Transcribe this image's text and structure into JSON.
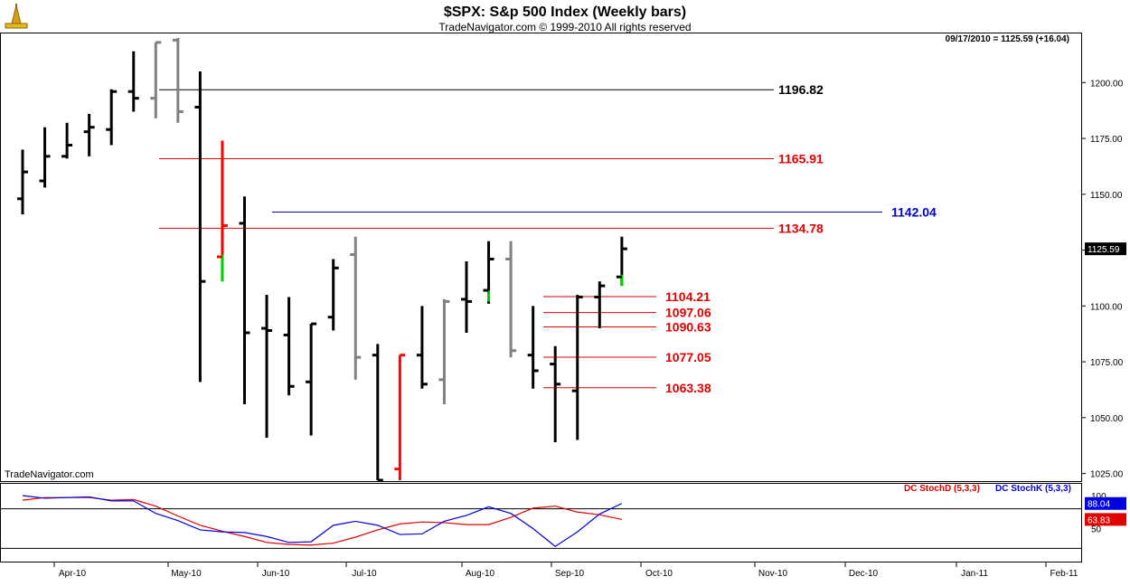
{
  "header": {
    "title": "$SPX:  S&p 500 Index  (Weekly bars)",
    "subtitle": "TradeNavigator.com © 1999-2010 All rights reserved",
    "price_info": "09/17/2010 = 1125.59 (+16.04)",
    "watermark": "TradeNavigator.com"
  },
  "colors": {
    "up": "#000000",
    "down": "#808080",
    "red": "#ff0000",
    "green": "#00d000",
    "blue": "#0000cc",
    "stochD": "#e00000",
    "stochK": "#0000e0"
  },
  "chart_data": [
    {
      "type": "ohlc",
      "title": "$SPX:  S&p 500 Index  (Weekly bars)",
      "ylim": [
        1022,
        1222
      ],
      "y_ticks": [
        "1025.00",
        "1050.00",
        "1075.00",
        "1100.00",
        "1125.00",
        "1150.00",
        "1175.00",
        "1200.00"
      ],
      "x_ticks": [
        "Apr-10",
        "May-10",
        "Jun-10",
        "Jul-10",
        "Aug-10",
        "Sep-10",
        "Oct-10",
        "Nov-10",
        "Dec-10",
        "Jan-11",
        "Feb-11"
      ],
      "current_price_label": "1125.59",
      "bars": [
        {
          "o": 1148,
          "h": 1170,
          "l": 1141,
          "c": 1160,
          "color": "up"
        },
        {
          "o": 1156,
          "h": 1180,
          "l": 1153,
          "c": 1167,
          "color": "up"
        },
        {
          "o": 1167,
          "h": 1182,
          "l": 1166,
          "c": 1172,
          "color": "up"
        },
        {
          "o": 1178,
          "h": 1186,
          "l": 1167,
          "c": 1180,
          "color": "up"
        },
        {
          "o": 1179,
          "h": 1197,
          "l": 1172,
          "c": 1196,
          "color": "up"
        },
        {
          "o": 1196,
          "h": 1214,
          "l": 1187,
          "c": 1193,
          "color": "up"
        },
        {
          "o": 1193,
          "h": 1218,
          "l": 1184,
          "c": 1218,
          "color": "down"
        },
        {
          "o": 1219,
          "h": 1220,
          "l": 1182,
          "c": 1187,
          "color": "down"
        },
        {
          "o": 1189,
          "h": 1205,
          "l": 1066,
          "c": 1111,
          "color": "up"
        },
        {
          "o": 1122,
          "h": 1174,
          "l": 1111,
          "c": 1136,
          "color": "red",
          "lowHighlight": [
            1111,
            1123
          ]
        },
        {
          "o": 1137,
          "h": 1149,
          "l": 1056,
          "c": 1088,
          "color": "up"
        },
        {
          "o": 1090,
          "h": 1105,
          "l": 1041,
          "c": 1089,
          "color": "up"
        },
        {
          "o": 1087,
          "h": 1104,
          "l": 1060,
          "c": 1064,
          "color": "up"
        },
        {
          "o": 1066,
          "h": 1092,
          "l": 1042,
          "c": 1092,
          "color": "up"
        },
        {
          "o": 1095,
          "h": 1121,
          "l": 1089,
          "c": 1117,
          "color": "up"
        },
        {
          "o": 1123,
          "h": 1131,
          "l": 1067,
          "c": 1077,
          "color": "down"
        },
        {
          "o": 1078,
          "h": 1083,
          "l": 1022,
          "c": 1022,
          "color": "up"
        },
        {
          "o": 1027,
          "h": 1078,
          "l": 1022,
          "c": 1078,
          "color": "red"
        },
        {
          "o": 1078,
          "h": 1100,
          "l": 1063,
          "c": 1065,
          "color": "up"
        },
        {
          "o": 1067,
          "h": 1103,
          "l": 1056,
          "c": 1102,
          "color": "down"
        },
        {
          "o": 1103,
          "h": 1120,
          "l": 1088,
          "c": 1102,
          "color": "up"
        },
        {
          "o": 1107,
          "h": 1129,
          "l": 1101,
          "c": 1121,
          "color": "up",
          "lowHighlight": [
            1102,
            1107
          ]
        },
        {
          "o": 1121,
          "h": 1129,
          "l": 1077,
          "c": 1080,
          "color": "down"
        },
        {
          "o": 1078,
          "h": 1100,
          "l": 1063,
          "c": 1071,
          "color": "up"
        },
        {
          "o": 1074,
          "h": 1082,
          "l": 1039,
          "c": 1065,
          "color": "up"
        },
        {
          "o": 1062,
          "h": 1105,
          "l": 1040,
          "c": 1104,
          "color": "up"
        },
        {
          "o": 1104,
          "h": 1111,
          "l": 1090,
          "c": 1109,
          "color": "up"
        },
        {
          "o": 1113,
          "h": 1131,
          "l": 1109,
          "c": 1125.59,
          "color": "up",
          "lowHighlight": [
            1109,
            1114
          ]
        }
      ],
      "levels": [
        {
          "value": 1196.82,
          "label": "1196.82",
          "color": "black"
        },
        {
          "value": 1165.91,
          "label": "1165.91",
          "color": "red"
        },
        {
          "value": 1142.04,
          "label": "1142.04",
          "color": "blue"
        },
        {
          "value": 1134.78,
          "label": "1134.78",
          "color": "red"
        },
        {
          "value": 1104.21,
          "label": "1104.21",
          "color": "red"
        },
        {
          "value": 1097.06,
          "label": "1097.06",
          "color": "red"
        },
        {
          "value": 1090.63,
          "label": "1090.63",
          "color": "red"
        },
        {
          "value": 1077.05,
          "label": "1077.05",
          "color": "red"
        },
        {
          "value": 1063.38,
          "label": "1063.38",
          "color": "red"
        }
      ]
    },
    {
      "type": "line",
      "ylim": [
        0,
        100
      ],
      "y_ticks": [
        "100",
        "50"
      ],
      "grid_levels": [
        80,
        20
      ],
      "series": [
        {
          "name": "DC StochD (5,3,3)",
          "color": "stochD",
          "badge": "63.83",
          "values": [
            93,
            97,
            97,
            97,
            93,
            94,
            84,
            69,
            55,
            46,
            38,
            29,
            26,
            25,
            28,
            37,
            48,
            57,
            60,
            59,
            56,
            56,
            67,
            81,
            84,
            75,
            71,
            63.83
          ]
        },
        {
          "name": "DC StochK (5,3,3)",
          "color": "stochK",
          "badge": "88.04",
          "values": [
            100,
            96,
            97,
            98,
            92,
            92,
            73,
            62,
            48,
            45,
            44,
            38,
            29,
            30,
            55,
            61,
            55,
            41,
            42,
            61,
            70,
            83,
            73,
            50,
            23,
            45,
            72,
            88.04
          ]
        }
      ]
    }
  ]
}
